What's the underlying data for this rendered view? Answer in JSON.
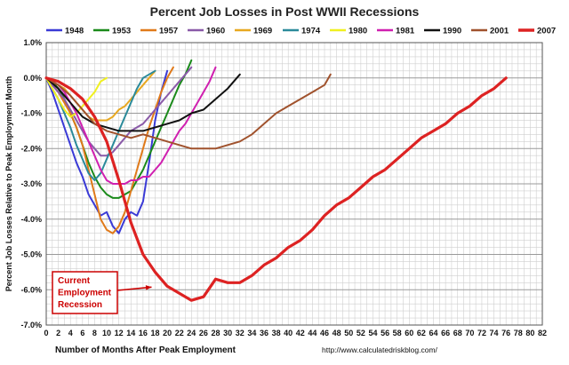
{
  "chart_data": {
    "type": "line",
    "title": "Percent Job Losses in Post WWII Recessions",
    "xlabel": "Number of Months After Peak Employment",
    "ylabel": "Percent Job Losses Relative to Peak Employment Month",
    "source": "http://www.calculatedriskblog.com/",
    "xlim": [
      0,
      82
    ],
    "ylim": [
      -7.0,
      1.0
    ],
    "x_ticks": [
      "0",
      "2",
      "4",
      "6",
      "8",
      "10",
      "12",
      "14",
      "16",
      "18",
      "20",
      "22",
      "24",
      "26",
      "28",
      "30",
      "32",
      "34",
      "36",
      "38",
      "40",
      "42",
      "44",
      "46",
      "48",
      "50",
      "52",
      "54",
      "56",
      "58",
      "60",
      "62",
      "64",
      "66",
      "68",
      "70",
      "72",
      "74",
      "76",
      "78",
      "80",
      "82"
    ],
    "y_ticks": [
      "1.0%",
      "0.0%",
      "-1.0%",
      "-2.0%",
      "-3.0%",
      "-4.0%",
      "-5.0%",
      "-6.0%",
      "-7.0%"
    ],
    "grid": true,
    "legend_position": "top",
    "annotation": {
      "lines": [
        "Current",
        "Employment",
        "Recession"
      ],
      "points_to": [
        18,
        -5.9
      ]
    },
    "series": [
      {
        "name": "1948",
        "color": "#3a3ad6",
        "x": [
          0,
          1,
          2,
          3,
          4,
          5,
          6,
          7,
          8,
          9,
          10,
          11,
          12,
          13,
          14,
          15,
          16,
          17,
          18,
          19,
          20
        ],
        "y": [
          0,
          -0.4,
          -0.9,
          -1.4,
          -1.9,
          -2.4,
          -2.8,
          -3.3,
          -3.6,
          -3.9,
          -3.8,
          -4.2,
          -4.4,
          -4.0,
          -3.8,
          -3.9,
          -3.5,
          -2.4,
          -1.2,
          -0.4,
          0.2
        ]
      },
      {
        "name": "1953",
        "color": "#1a8a1a",
        "x": [
          0,
          1,
          2,
          3,
          4,
          5,
          6,
          7,
          8,
          9,
          10,
          11,
          12,
          13,
          14,
          15,
          16,
          17,
          18,
          19,
          20,
          21,
          22,
          23,
          24
        ],
        "y": [
          0,
          -0.1,
          -0.3,
          -0.6,
          -1.0,
          -1.4,
          -1.9,
          -2.4,
          -2.8,
          -3.1,
          -3.3,
          -3.4,
          -3.4,
          -3.3,
          -3.2,
          -2.9,
          -2.6,
          -2.2,
          -1.8,
          -1.4,
          -1.0,
          -0.6,
          -0.2,
          0.1,
          0.5
        ]
      },
      {
        "name": "1957",
        "color": "#e07a1a",
        "x": [
          0,
          1,
          2,
          3,
          4,
          5,
          6,
          7,
          8,
          9,
          10,
          11,
          12,
          13,
          14,
          15,
          16,
          17,
          18,
          19,
          20,
          21
        ],
        "y": [
          0,
          -0.2,
          -0.4,
          -0.7,
          -1.0,
          -1.4,
          -1.9,
          -2.6,
          -3.3,
          -4.0,
          -4.3,
          -4.4,
          -4.2,
          -3.8,
          -3.2,
          -2.6,
          -2.0,
          -1.4,
          -0.9,
          -0.4,
          0.0,
          0.3
        ]
      },
      {
        "name": "1960",
        "color": "#8a5aa8",
        "x": [
          0,
          1,
          2,
          3,
          4,
          5,
          6,
          7,
          8,
          9,
          10,
          11,
          12,
          13,
          14,
          15,
          16,
          17,
          18,
          19,
          20,
          21,
          22,
          23,
          24
        ],
        "y": [
          0,
          -0.2,
          -0.4,
          -0.6,
          -0.9,
          -1.2,
          -1.5,
          -1.8,
          -2.0,
          -2.2,
          -2.2,
          -2.1,
          -1.9,
          -1.7,
          -1.5,
          -1.4,
          -1.3,
          -1.1,
          -0.9,
          -0.7,
          -0.5,
          -0.3,
          -0.1,
          0.1,
          0.3
        ]
      },
      {
        "name": "1969",
        "color": "#e8a820",
        "x": [
          0,
          1,
          2,
          3,
          4,
          5,
          6,
          7,
          8,
          9,
          10,
          11,
          12,
          13,
          14,
          15,
          16,
          17,
          18
        ],
        "y": [
          0,
          -0.1,
          -0.2,
          -0.3,
          -0.5,
          -0.7,
          -0.9,
          -1.1,
          -1.2,
          -1.2,
          -1.2,
          -1.1,
          -0.9,
          -0.8,
          -0.6,
          -0.4,
          -0.2,
          0.0,
          0.2
        ]
      },
      {
        "name": "1974",
        "color": "#2a8a9a",
        "x": [
          0,
          1,
          2,
          3,
          4,
          5,
          6,
          7,
          8,
          9,
          10,
          11,
          12,
          13,
          14,
          15,
          16,
          17,
          18
        ],
        "y": [
          0,
          -0.3,
          -0.6,
          -1.0,
          -1.4,
          -1.9,
          -2.3,
          -2.7,
          -2.9,
          -2.7,
          -2.3,
          -1.9,
          -1.5,
          -1.1,
          -0.7,
          -0.3,
          0.0,
          0.1,
          0.2
        ]
      },
      {
        "name": "1980",
        "color": "#f0f020",
        "x": [
          0,
          1,
          2,
          3,
          4,
          5,
          6,
          7,
          8,
          9,
          10
        ],
        "y": [
          0,
          -0.3,
          -0.6,
          -0.9,
          -1.1,
          -1.0,
          -0.8,
          -0.6,
          -0.4,
          -0.1,
          0.0
        ]
      },
      {
        "name": "1981",
        "color": "#d020b0",
        "x": [
          0,
          1,
          2,
          3,
          4,
          5,
          6,
          7,
          8,
          9,
          10,
          11,
          12,
          13,
          14,
          15,
          16,
          17,
          18,
          19,
          20,
          21,
          22,
          23,
          24,
          25,
          26,
          27,
          28
        ],
        "y": [
          0,
          -0.1,
          -0.2,
          -0.4,
          -0.7,
          -1.0,
          -1.4,
          -1.8,
          -2.2,
          -2.6,
          -2.9,
          -3.0,
          -3.0,
          -3.0,
          -2.9,
          -2.9,
          -2.8,
          -2.8,
          -2.6,
          -2.4,
          -2.1,
          -1.8,
          -1.5,
          -1.3,
          -1.0,
          -0.7,
          -0.4,
          -0.1,
          0.3
        ]
      },
      {
        "name": "1990",
        "color": "#111111",
        "x": [
          0,
          2,
          4,
          6,
          8,
          10,
          12,
          14,
          16,
          18,
          20,
          22,
          24,
          26,
          28,
          30,
          32
        ],
        "y": [
          0,
          -0.3,
          -0.7,
          -1.1,
          -1.3,
          -1.4,
          -1.5,
          -1.5,
          -1.5,
          -1.4,
          -1.3,
          -1.2,
          -1.0,
          -0.9,
          -0.6,
          -0.3,
          0.1
        ]
      },
      {
        "name": "2001",
        "color": "#a0522d",
        "x": [
          0,
          2,
          4,
          6,
          8,
          10,
          12,
          14,
          16,
          18,
          20,
          22,
          24,
          26,
          28,
          30,
          32,
          34,
          36,
          38,
          40,
          42,
          44,
          46,
          47
        ],
        "y": [
          0,
          -0.2,
          -0.5,
          -0.9,
          -1.3,
          -1.5,
          -1.6,
          -1.7,
          -1.6,
          -1.7,
          -1.8,
          -1.9,
          -2.0,
          -2.0,
          -2.0,
          -1.9,
          -1.8,
          -1.6,
          -1.3,
          -1.0,
          -0.8,
          -0.6,
          -0.4,
          -0.2,
          0.1
        ]
      },
      {
        "name": "2007",
        "color": "#dd2222",
        "x": [
          0,
          2,
          4,
          6,
          8,
          10,
          12,
          14,
          16,
          18,
          20,
          22,
          24,
          26,
          28,
          30,
          32,
          34,
          36,
          38,
          40,
          42,
          44,
          46,
          48,
          50,
          52,
          54,
          56,
          58,
          60,
          62,
          64,
          66,
          68,
          70,
          72,
          74,
          76
        ],
        "y": [
          0,
          -0.1,
          -0.3,
          -0.6,
          -1.1,
          -1.8,
          -2.9,
          -4.1,
          -5.0,
          -5.5,
          -5.9,
          -6.1,
          -6.3,
          -6.2,
          -5.7,
          -5.8,
          -5.8,
          -5.6,
          -5.3,
          -5.1,
          -4.8,
          -4.6,
          -4.3,
          -3.9,
          -3.6,
          -3.4,
          -3.1,
          -2.8,
          -2.6,
          -2.3,
          -2.0,
          -1.7,
          -1.5,
          -1.3,
          -1.0,
          -0.8,
          -0.5,
          -0.3,
          0.0
        ]
      }
    ]
  }
}
